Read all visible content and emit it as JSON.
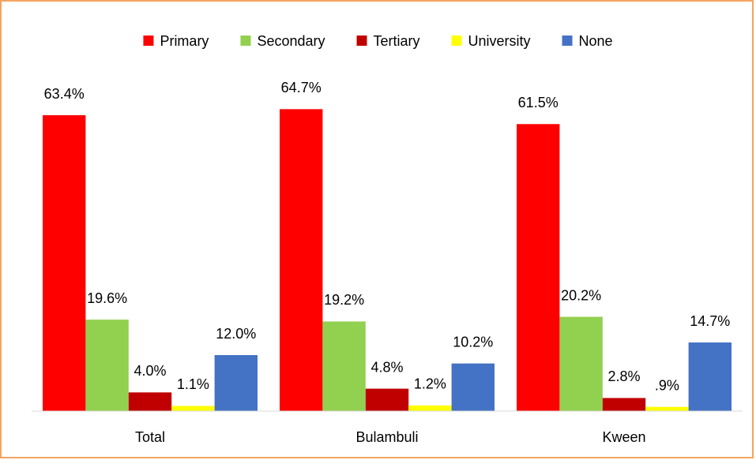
{
  "chart_data": {
    "type": "bar",
    "categories": [
      "Total",
      "Bulambuli",
      "Kween"
    ],
    "series": [
      {
        "name": "Primary",
        "color": "#ff0000",
        "values": [
          63.4,
          64.7,
          61.5
        ],
        "value_labels": [
          "63.4%",
          "64.7%",
          "61.5%"
        ]
      },
      {
        "name": "Secondary",
        "color": "#92d050",
        "values": [
          19.6,
          19.2,
          20.2
        ],
        "value_labels": [
          "19.6%",
          "19.2%",
          "20.2%"
        ]
      },
      {
        "name": "Tertiary",
        "color": "#c00000",
        "values": [
          4.0,
          4.8,
          2.8
        ],
        "value_labels": [
          "4.0%",
          "4.8%",
          "2.8%"
        ]
      },
      {
        "name": "University",
        "color": "#ffff00",
        "values": [
          1.1,
          1.2,
          0.9
        ],
        "value_labels": [
          "1.1%",
          "1.2%",
          ".9%"
        ]
      },
      {
        "name": "None",
        "color": "#4472c4",
        "values": [
          12.0,
          10.2,
          14.7
        ],
        "value_labels": [
          "12.0%",
          "10.2%",
          "14.7%"
        ]
      }
    ],
    "ylim": [
      0,
      70
    ],
    "legend": "top"
  }
}
